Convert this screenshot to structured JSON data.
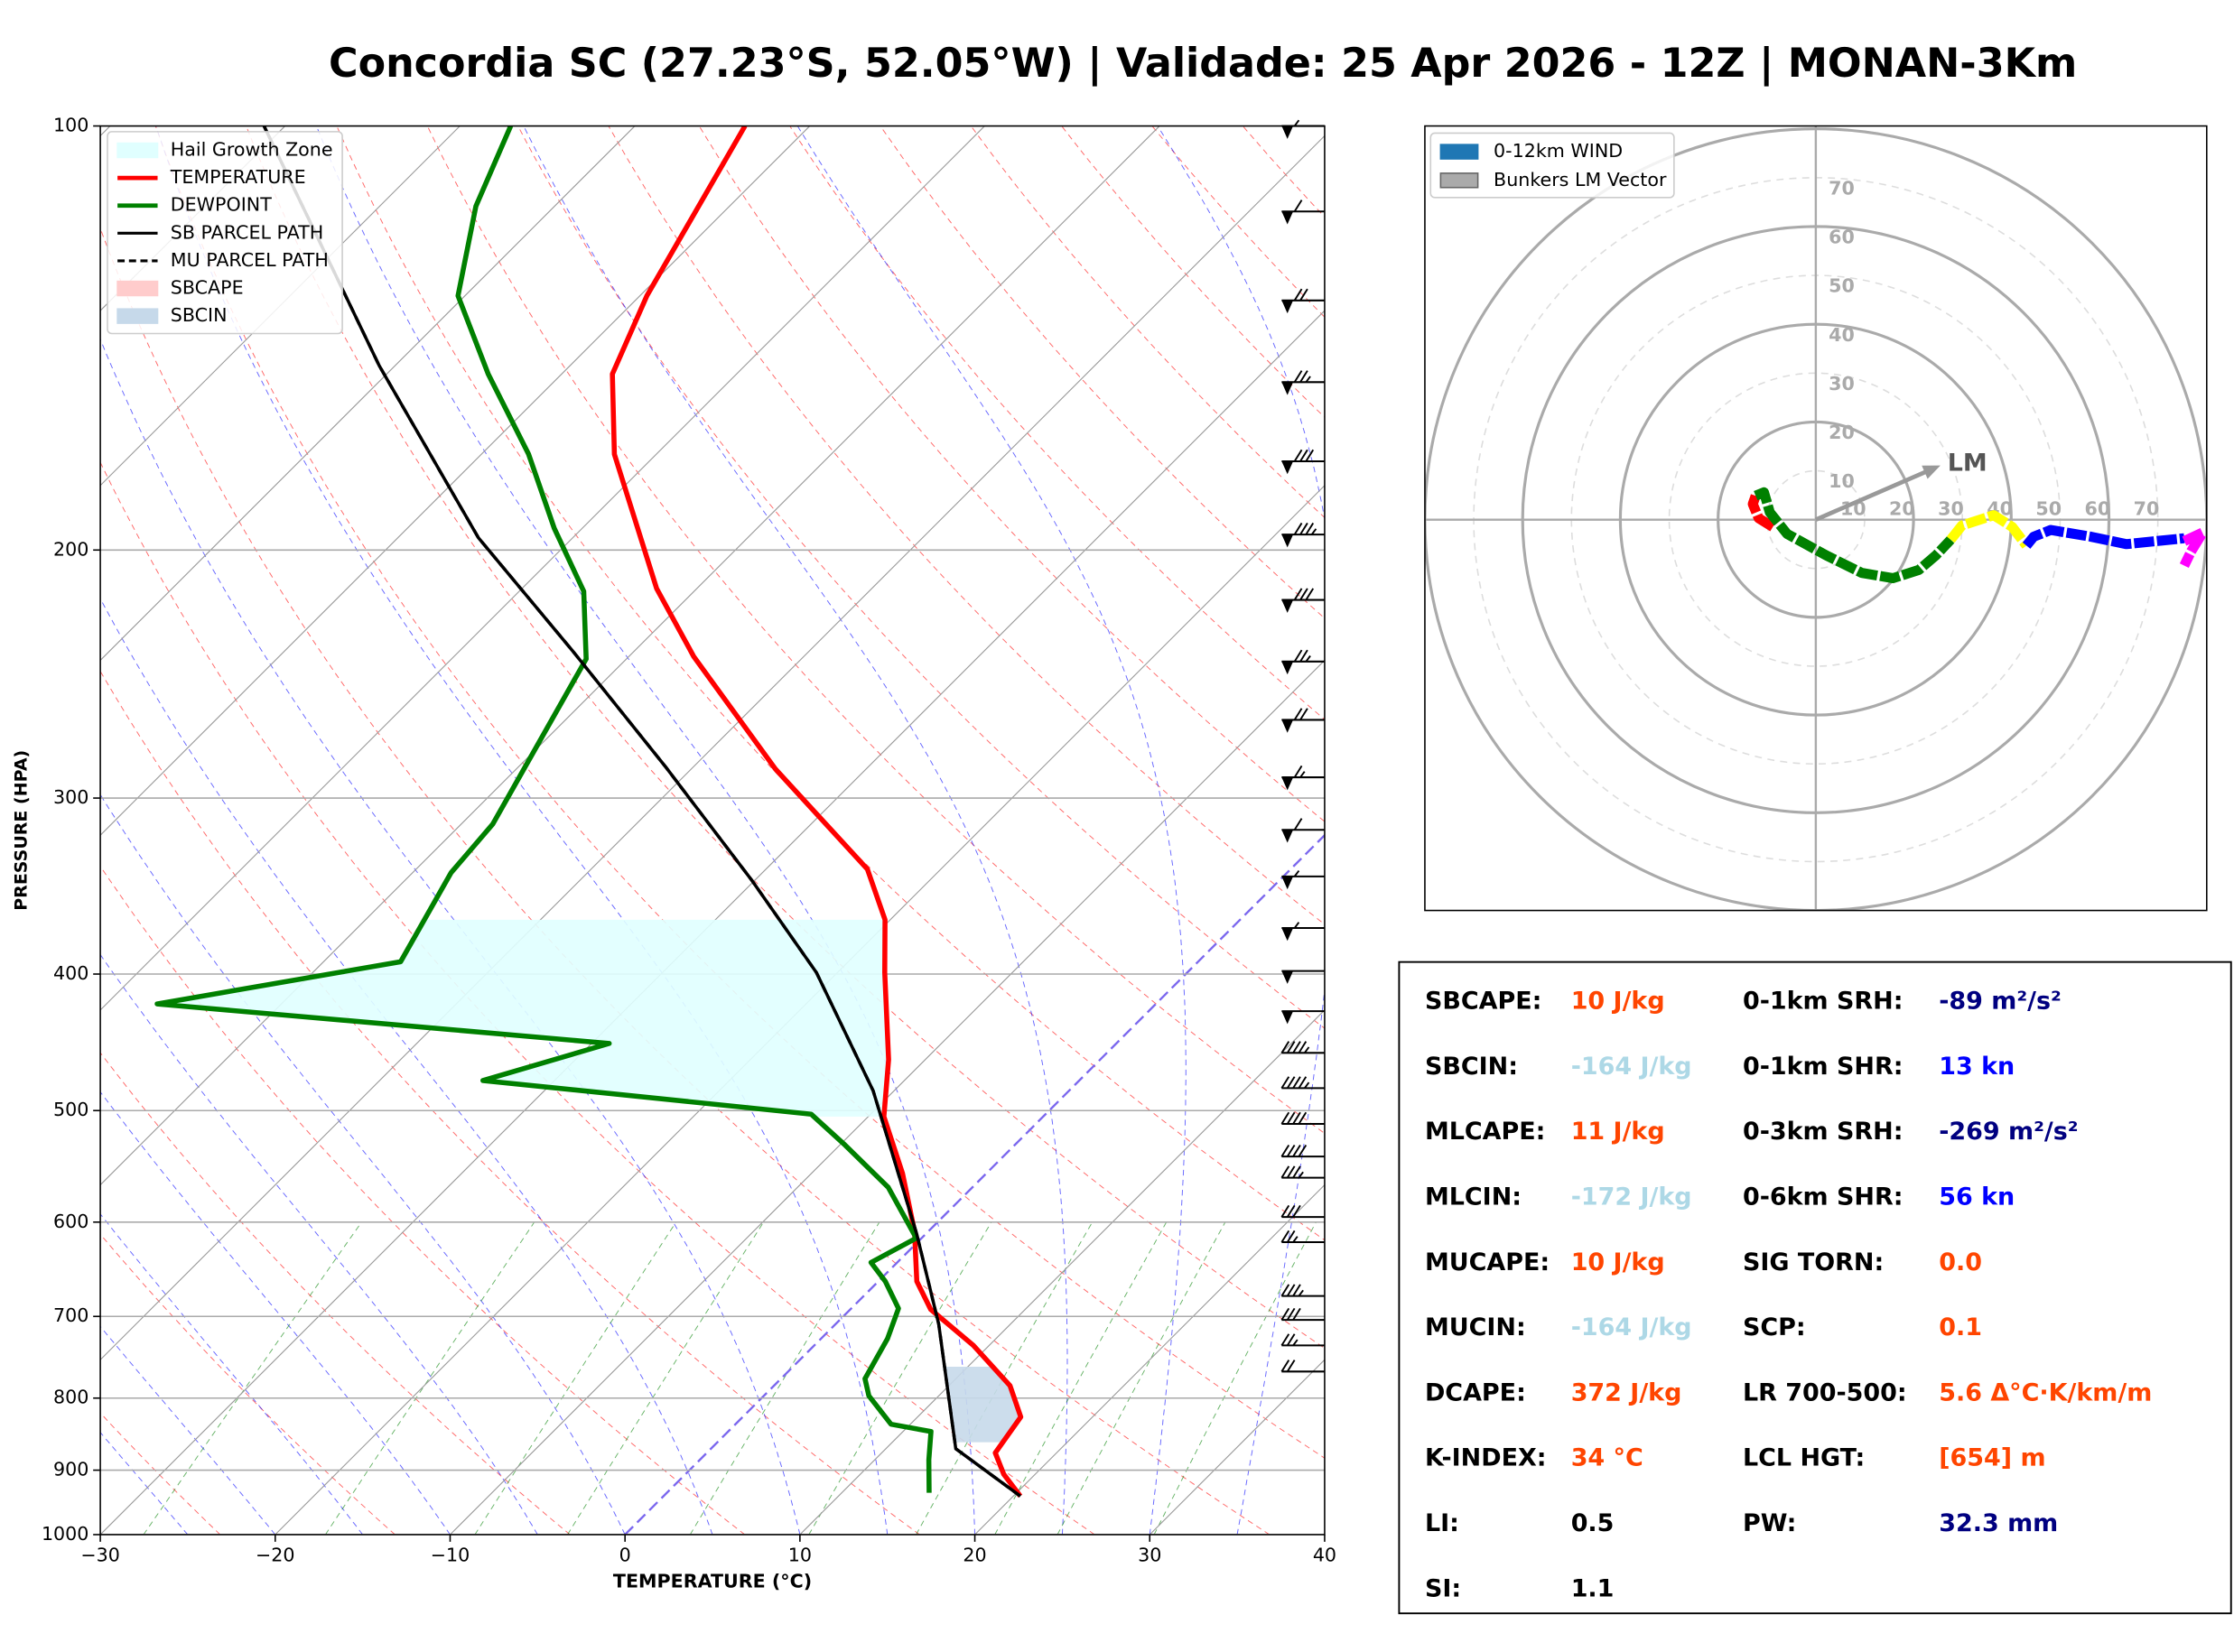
{
  "title": "Concordia SC (27.23°S, 52.05°W) | Validade: 25 Apr 2026 - 12Z | MONAN-3Km",
  "chart_data": [
    {
      "type": "skewt",
      "xlabel": "TEMPERATURE (°C)",
      "ylabel": "PRESSURE (HPA)",
      "xlim": [
        -30,
        40
      ],
      "xticks": [
        {
          "value": -30,
          "label": "−30"
        },
        {
          "value": -20,
          "label": "−20"
        },
        {
          "value": -10,
          "label": "−10"
        },
        0,
        10,
        20,
        30,
        40
      ],
      "ylim": [
        1000,
        100
      ],
      "log_y": true,
      "yticks": [
        1000,
        900,
        800,
        700,
        600,
        500,
        400,
        300,
        200,
        100
      ],
      "grid": true,
      "series": [
        {
          "name": "TEMPERATURE",
          "color": "#ff0000",
          "dash": false,
          "pressure": [
            939,
            906,
            875,
            825,
            784,
            734,
            692,
            661,
            609,
            554,
            505,
            460,
            399,
            366,
            337,
            310,
            286,
            238,
            213,
            171,
            150,
            132,
            100
          ],
          "values": [
            20.4,
            18.2,
            16.5,
            15.9,
            13.5,
            9.1,
            4.6,
            2.2,
            -0.8,
            -4.8,
            -9.1,
            -12.1,
            -17.3,
            -20.3,
            -24.2,
            -29.8,
            -35.2,
            -46.3,
            -52.3,
            -62.4,
            -67.1,
            -69.6,
            -73.7
          ]
        },
        {
          "name": "DEWPOINT",
          "color": "#008000",
          "dash": false,
          "pressure": [
            934,
            885,
            845,
            835,
            797,
            775,
            726,
            691,
            661,
            641,
            616,
            567,
            529,
            503,
            476,
            448,
            420,
            392,
            339,
            313,
            239,
            214,
            193,
            171,
            150,
            132,
            114,
            100
          ],
          "values": [
            15.0,
            13.1,
            11.6,
            8.9,
            6.0,
            4.8,
            3.8,
            2.7,
            0.4,
            -1.5,
            -0.3,
            -4.8,
            -9.7,
            -13.4,
            -34.1,
            -29.0,
            -57.1,
            -45.6,
            -47.8,
            -48.2,
            -52.3,
            -56.3,
            -61.6,
            -67.3,
            -74.2,
            -80.4,
            -84.5,
            -87.1
          ]
        },
        {
          "name": "SB PARCEL PATH",
          "color": "#000000",
          "dash": false,
          "pressure": [
            939,
            869,
            709,
            612,
            484,
            399,
            343,
            285,
            236,
            196,
            148,
            100
          ],
          "values": [
            20.4,
            14.0,
            5.9,
            -0.5,
            -11.2,
            -21.2,
            -30.2,
            -41.6,
            -53.5,
            -65.4,
            -80.9,
            -101.2
          ]
        },
        {
          "name": "MU PARCEL PATH",
          "color": "#000000",
          "dash": true,
          "pressure": [
            939,
            869,
            709,
            612,
            484,
            399,
            343,
            285,
            236,
            196,
            148,
            100
          ],
          "values": [
            20.4,
            14.0,
            5.9,
            -0.5,
            -11.2,
            -21.2,
            -30.2,
            -41.6,
            -53.5,
            -65.4,
            -80.9,
            -101.2
          ]
        }
      ],
      "shading": [
        {
          "name": "Hail Growth Zone",
          "color": "#e0ffff",
          "pressure": [
            505,
            366
          ]
        },
        {
          "name": "SBCAPE",
          "color": "#ffcccc"
        },
        {
          "name": "SBCIN",
          "color": "#c6d9ea",
          "pressure": [
            860,
            760
          ]
        }
      ],
      "wind_barbs": {
        "pressure": [
          100,
          115,
          133,
          152,
          173,
          195,
          217,
          240,
          264,
          290,
          316,
          341,
          371,
          398,
          425,
          455,
          482,
          511,
          539,
          558,
          595,
          620,
          677,
          704,
          734,
          766
        ],
        "speed": [
          55,
          60,
          70,
          75,
          80,
          85,
          80,
          75,
          70,
          65,
          60,
          55,
          55,
          50,
          50,
          45,
          45,
          40,
          40,
          35,
          30,
          25,
          35,
          30,
          25,
          20
        ]
      }
    },
    {
      "type": "hodograph",
      "rlim": [
        0,
        80
      ],
      "rticks": [
        10,
        20,
        30,
        40,
        50,
        60,
        70
      ],
      "legend": [
        {
          "name": "0-12km WIND",
          "color": "#1f77b4"
        },
        {
          "name": "Bunkers LM Vector",
          "color": "#aaaaaa"
        }
      ],
      "segments": [
        {
          "color": "#ff0000",
          "u": [
            -8.8,
            -11.7,
            -12.9,
            -12.3
          ],
          "v": [
            -1.5,
            0.3,
            3.2,
            4.9
          ]
        },
        {
          "color": "#008000",
          "u": [
            -12.3,
            -10.6,
            -9.4,
            -5.9,
            2.1,
            9.4,
            15.8,
            21.1,
            24.6,
            27.6
          ],
          "v": [
            4.9,
            5.6,
            1.5,
            -2.9,
            -7.3,
            -10.9,
            -12.0,
            -10.3,
            -7.3,
            -4.1
          ]
        },
        {
          "color": "#ffff00",
          "u": [
            27.6,
            29.9,
            36.4,
            40.2,
            43.1
          ],
          "v": [
            -4.1,
            -1.2,
            0.9,
            -1.5,
            -5.3
          ]
        },
        {
          "color": "#0000ff",
          "u": [
            43.1,
            44.6,
            48.1,
            56.3,
            63.6,
            75.4
          ],
          "v": [
            -5.3,
            -3.5,
            -2.1,
            -3.5,
            -5.0,
            -3.8
          ]
        },
        {
          "color": "#ff00ff",
          "u": [
            75.4,
            79.2,
            76.8,
            75.4
          ],
          "v": [
            -4.4,
            -2.6,
            -6.5,
            -9.4
          ]
        }
      ],
      "lm": {
        "label": "LM",
        "u": 25.5,
        "v": 11.1
      }
    }
  ],
  "stats": {
    "left": [
      {
        "label": "SBCAPE:",
        "value": "10 J/kg",
        "color": "#ff4500"
      },
      {
        "label": "SBCIN:",
        "value": "-164 J/kg",
        "color": "#add8e6"
      },
      {
        "label": "MLCAPE:",
        "value": "11 J/kg",
        "color": "#ff4500"
      },
      {
        "label": "MLCIN:",
        "value": "-172 J/kg",
        "color": "#add8e6"
      },
      {
        "label": "MUCAPE:",
        "value": "10 J/kg",
        "color": "#ff4500"
      },
      {
        "label": "MUCIN:",
        "value": "-164 J/kg",
        "color": "#add8e6"
      },
      {
        "label": "DCAPE:",
        "value": "372 J/kg",
        "color": "#ff4500"
      },
      {
        "label": "K-INDEX:",
        "value": "34 °C",
        "color": "#ff4500"
      },
      {
        "label": "LI:",
        "value": "0.5",
        "color": "#000000"
      },
      {
        "label": "SI:",
        "value": "1.1",
        "color": "#000000"
      }
    ],
    "right": [
      {
        "label": "0-1km SRH:",
        "value": "-89 m²/s²",
        "color": "#000080"
      },
      {
        "label": "0-1km SHR:",
        "value": "13 kn",
        "color": "#0000ff"
      },
      {
        "label": "0-3km SRH:",
        "value": "-269 m²/s²",
        "color": "#000080"
      },
      {
        "label": "0-6km SHR:",
        "value": "56 kn",
        "color": "#0000ff"
      },
      {
        "label": "SIG TORN:",
        "value": "0.0",
        "color": "#ff4500"
      },
      {
        "label": "SCP:",
        "value": "0.1",
        "color": "#ff4500"
      },
      {
        "label": "LR 700-500:",
        "value": "5.6 Δ°C·K/km/m",
        "color": "#ff4500"
      },
      {
        "label": "LCL HGT:",
        "value": "[654] m",
        "color": "#ff4500"
      },
      {
        "label": "PW:",
        "value": "32.3 mm",
        "color": "#000080"
      }
    ]
  }
}
